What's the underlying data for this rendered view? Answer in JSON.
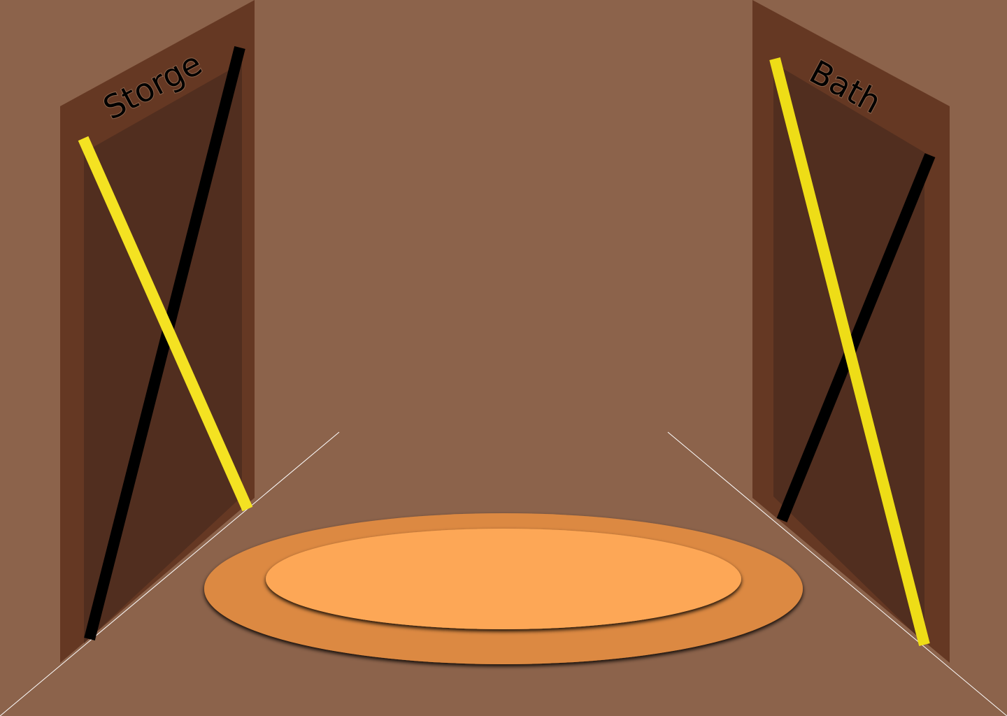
{
  "scene": {
    "name": "hallway",
    "doors": [
      {
        "id": "storage",
        "label": "Storge",
        "blocked": true
      },
      {
        "id": "bath",
        "label": "Bath",
        "blocked": true
      }
    ],
    "rug": {
      "shape": "oval"
    }
  },
  "colors": {
    "wall": "#8c634b",
    "door_frame": "#653823",
    "door_interior": "#512e1f",
    "tape_yellow": "#f4e222",
    "tape_yellow_dark": "#eedd17",
    "tape_black": "#000000",
    "rug_outer": "#dc8943",
    "rug_inner": "#fda757",
    "floor_line": "#ffffff"
  }
}
